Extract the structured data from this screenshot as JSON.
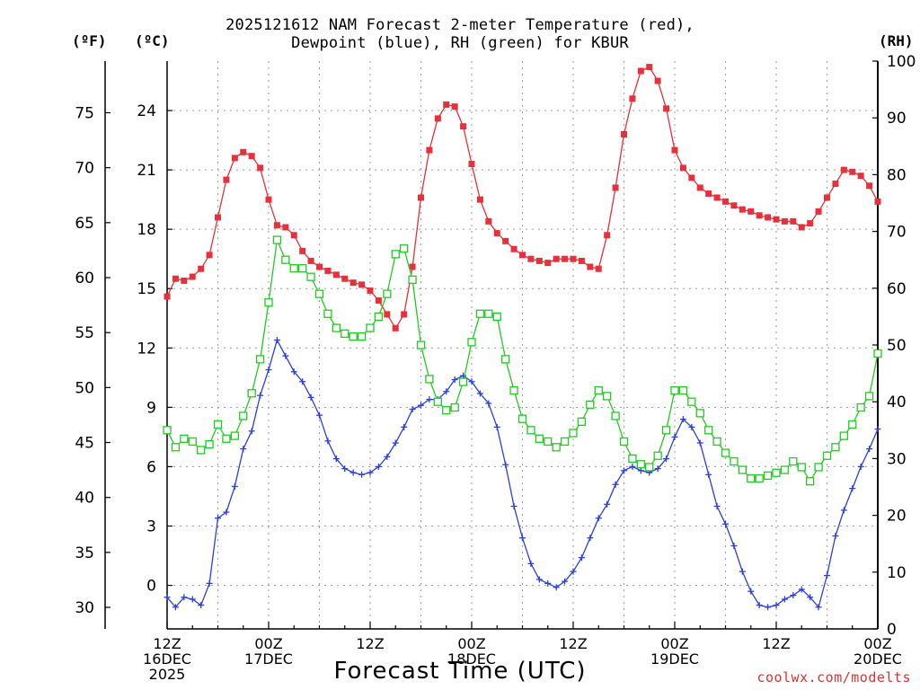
{
  "header": {
    "title_line1": "2025121612 NAM Forecast 2-meter Temperature (red),",
    "title_line2": "Dewpoint (blue), RH (green) for KBUR",
    "unit_f": "(ºF)",
    "unit_c": "(ºC)",
    "unit_rh": "(RH)"
  },
  "footer": {
    "xlabel": "Forecast Time (UTC)",
    "credit": "coolwx.com/modelts"
  },
  "colors": {
    "temperature": "#e8303a",
    "dewpoint": "#2a3fe0",
    "rh": "#20cc20",
    "grid": "#9a9a9a",
    "axis": "#000000"
  },
  "chart_data": {
    "type": "line",
    "title": "2025121612 NAM Forecast 2-meter Temperature (red), Dewpoint (blue), RH (green) for KBUR",
    "xlabel": "Forecast Time (UTC)",
    "ylabel_left_f": "(ºF)",
    "ylabel_left_c": "(ºC)",
    "ylabel_right": "(RH)",
    "x_unit": "forecast hour from 12Z 16DEC 2025",
    "xlim": [
      0,
      84
    ],
    "ylim_c": [
      -2.2,
      26.5
    ],
    "ylim_rh": [
      0,
      100
    ],
    "f_ticks": [
      "30",
      "35",
      "40",
      "45",
      "50",
      "55",
      "60",
      "65",
      "70",
      "75"
    ],
    "c_ticks": [
      "0",
      "3",
      "6",
      "9",
      "12",
      "15",
      "18",
      "21",
      "24"
    ],
    "rh_ticks": [
      "0",
      "10",
      "20",
      "30",
      "40",
      "50",
      "60",
      "70",
      "80",
      "90",
      "100"
    ],
    "x_ticks": [
      {
        "hour": 0,
        "lines": [
          "12Z",
          "16DEC",
          "2025"
        ]
      },
      {
        "hour": 12,
        "lines": [
          "00Z",
          "17DEC"
        ]
      },
      {
        "hour": 24,
        "lines": [
          "12Z"
        ]
      },
      {
        "hour": 36,
        "lines": [
          "00Z",
          "18DEC"
        ]
      },
      {
        "hour": 48,
        "lines": [
          "12Z"
        ]
      },
      {
        "hour": 60,
        "lines": [
          "00Z",
          "19DEC"
        ]
      },
      {
        "hour": 72,
        "lines": [
          "12Z"
        ]
      },
      {
        "hour": 84,
        "lines": [
          "00Z",
          "20DEC"
        ]
      }
    ],
    "series": [
      {
        "name": "Temperature (°C)",
        "axis": "c",
        "marker": "filled-square",
        "color": "#e8303a",
        "x": [
          0,
          1,
          2,
          3,
          4,
          5,
          6,
          7,
          8,
          9,
          10,
          11,
          12,
          13,
          14,
          15,
          16,
          17,
          18,
          19,
          20,
          21,
          22,
          23,
          24,
          25,
          26,
          27,
          28,
          29,
          30,
          31,
          32,
          33,
          34,
          35,
          36,
          37,
          38,
          39,
          40,
          41,
          42,
          43,
          44,
          45,
          46,
          47,
          48,
          49,
          50,
          51,
          52,
          53,
          54,
          55,
          56,
          57,
          58,
          59,
          60,
          61,
          62,
          63,
          64,
          65,
          66,
          67,
          68,
          69,
          70,
          71,
          72,
          73,
          74,
          75,
          76,
          77,
          78,
          79,
          80,
          81,
          82,
          83,
          84
        ],
        "values": [
          14.6,
          15.5,
          15.4,
          15.6,
          16.0,
          16.7,
          18.6,
          20.5,
          21.6,
          21.9,
          21.7,
          21.1,
          19.5,
          18.2,
          18.1,
          17.7,
          16.9,
          16.4,
          16.1,
          15.9,
          15.7,
          15.5,
          15.3,
          15.2,
          14.9,
          14.4,
          13.7,
          13.0,
          13.7,
          16.1,
          19.6,
          22.0,
          23.6,
          24.3,
          24.2,
          23.2,
          21.3,
          19.5,
          18.4,
          17.8,
          17.4,
          17.0,
          16.7,
          16.5,
          16.4,
          16.3,
          16.5,
          16.5,
          16.5,
          16.4,
          16.1,
          16.0,
          17.7,
          20.1,
          22.8,
          24.6,
          26.0,
          26.2,
          25.5,
          24.1,
          22.0,
          21.1,
          20.6,
          20.1,
          19.8,
          19.6,
          19.4,
          19.2,
          19.0,
          18.9,
          18.7,
          18.6,
          18.5,
          18.4,
          18.4,
          18.1,
          18.3,
          18.9,
          19.6,
          20.3,
          21.0,
          20.9,
          20.7,
          20.2,
          19.4
        ]
      },
      {
        "name": "Dewpoint (°C)",
        "axis": "c",
        "marker": "plus",
        "color": "#2a3fe0",
        "x": [
          0,
          1,
          2,
          3,
          4,
          5,
          6,
          7,
          8,
          9,
          10,
          11,
          12,
          13,
          14,
          15,
          16,
          17,
          18,
          19,
          20,
          21,
          22,
          23,
          24,
          25,
          26,
          27,
          28,
          29,
          30,
          31,
          32,
          33,
          34,
          35,
          36,
          37,
          38,
          39,
          40,
          41,
          42,
          43,
          44,
          45,
          46,
          47,
          48,
          49,
          50,
          51,
          52,
          53,
          54,
          55,
          56,
          57,
          58,
          59,
          60,
          61,
          62,
          63,
          64,
          65,
          66,
          67,
          68,
          69,
          70,
          71,
          72,
          73,
          74,
          75,
          76,
          77,
          78,
          79,
          80,
          81,
          82,
          83,
          84
        ],
        "values": [
          -0.6,
          -1.1,
          -0.6,
          -0.7,
          -1.0,
          0.1,
          3.4,
          3.7,
          5.0,
          6.9,
          7.8,
          9.6,
          10.9,
          12.4,
          11.6,
          10.8,
          10.3,
          9.5,
          8.6,
          7.3,
          6.4,
          5.9,
          5.7,
          5.6,
          5.7,
          6.0,
          6.5,
          7.2,
          8.0,
          8.9,
          9.1,
          9.4,
          9.4,
          9.8,
          10.4,
          10.6,
          10.3,
          9.7,
          9.2,
          8.0,
          6.1,
          4.0,
          2.4,
          1.1,
          0.3,
          0.1,
          -0.1,
          0.2,
          0.7,
          1.4,
          2.4,
          3.4,
          4.1,
          5.1,
          5.8,
          6.0,
          5.8,
          5.7,
          5.9,
          6.4,
          7.5,
          8.4,
          8.0,
          7.2,
          5.6,
          4.0,
          3.1,
          2.0,
          0.7,
          -0.3,
          -1.0,
          -1.1,
          -1.0,
          -0.7,
          -0.5,
          -0.2,
          -0.6,
          -1.1,
          0.5,
          2.5,
          3.8,
          4.9,
          6.0,
          6.9,
          7.9
        ]
      },
      {
        "name": "RH (%)",
        "axis": "rh",
        "marker": "open-square",
        "color": "#20cc20",
        "x": [
          0,
          1,
          2,
          3,
          4,
          5,
          6,
          7,
          8,
          9,
          10,
          11,
          12,
          13,
          14,
          15,
          16,
          17,
          18,
          19,
          20,
          21,
          22,
          23,
          24,
          25,
          26,
          27,
          28,
          29,
          30,
          31,
          32,
          33,
          34,
          35,
          36,
          37,
          38,
          39,
          40,
          41,
          42,
          43,
          44,
          45,
          46,
          47,
          48,
          49,
          50,
          51,
          52,
          53,
          54,
          55,
          56,
          57,
          58,
          59,
          60,
          61,
          62,
          63,
          64,
          65,
          66,
          67,
          68,
          69,
          70,
          71,
          72,
          73,
          74,
          75,
          76,
          77,
          78,
          79,
          80,
          81,
          82,
          83,
          84
        ],
        "values": [
          35,
          32,
          33.5,
          33,
          31.5,
          32.5,
          36,
          33.5,
          34,
          37.5,
          41.5,
          47.5,
          57.5,
          68.5,
          65,
          63.5,
          63.5,
          62,
          59,
          55.5,
          53,
          52,
          51.5,
          51.5,
          53,
          55,
          59,
          66,
          67,
          61.5,
          50,
          44,
          40,
          38.5,
          39,
          43.5,
          50.5,
          55.5,
          55.5,
          55,
          47.5,
          42,
          37,
          35,
          33.5,
          33,
          32,
          33,
          34.5,
          36.5,
          39.5,
          42,
          41,
          37.5,
          33,
          30,
          29,
          28.5,
          30.5,
          35,
          42,
          42,
          40,
          38,
          35,
          33,
          31,
          29.5,
          28,
          26.5,
          26.5,
          27,
          27.5,
          28,
          29.5,
          28.5,
          26,
          28.5,
          30.5,
          32,
          34,
          36,
          39,
          41,
          48.5
        ]
      }
    ]
  }
}
